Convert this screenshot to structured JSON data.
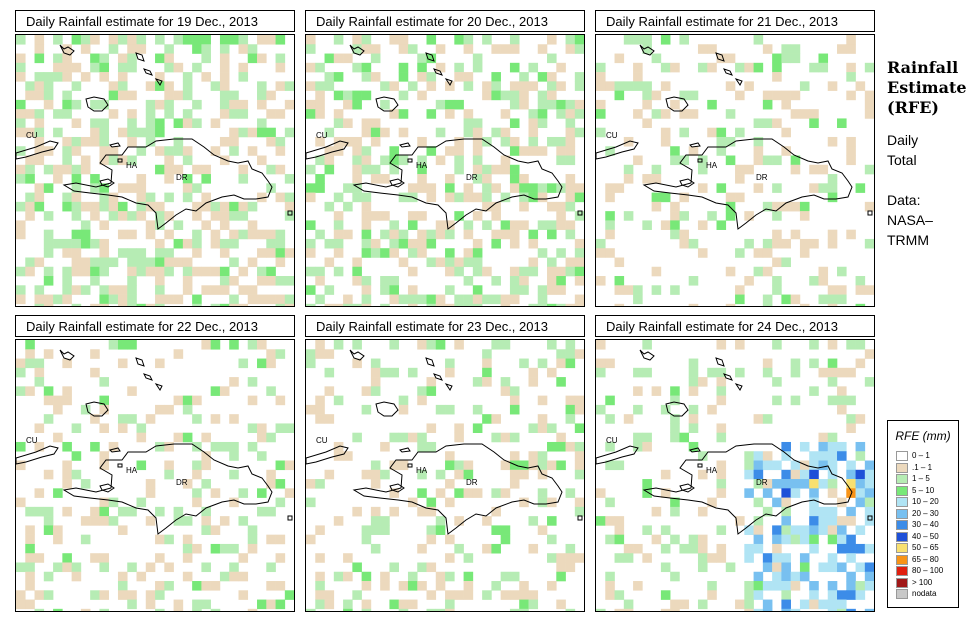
{
  "panels": [
    {
      "title": "Daily Rainfall estimate for  19 Dec., 2013",
      "seed": 19,
      "wet": 0.55,
      "heavy": 0
    },
    {
      "title": "Daily Rainfall estimate for  20 Dec., 2013",
      "seed": 20,
      "wet": 0.5,
      "heavy": 0
    },
    {
      "title": "Daily Rainfall estimate for  21 Dec., 2013",
      "seed": 21,
      "wet": 0.3,
      "heavy": 0
    },
    {
      "title": "Daily Rainfall estimate for  22 Dec., 2013",
      "seed": 22,
      "wet": 0.3,
      "heavy": 0
    },
    {
      "title": "Daily Rainfall estimate for  23 Dec., 2013",
      "seed": 23,
      "wet": 0.32,
      "heavy": 0
    },
    {
      "title": "Daily Rainfall estimate for  24 Dec., 2013",
      "seed": 24,
      "wet": 0.3,
      "heavy": 1
    }
  ],
  "map_labels": {
    "cuba": "CU",
    "haiti": "HA",
    "dominican_republic": "DR"
  },
  "side": {
    "title_line1": "Rainfall",
    "title_line2": "Estimate",
    "title_line3": "(RFE)",
    "daily": "Daily",
    "total": "Total",
    "data": "Data:",
    "source1": "NASA–",
    "source2": "TRMM"
  },
  "legend": {
    "title": "RFE (mm)",
    "items": [
      {
        "label": "0 – 1",
        "color": "#ffffff"
      },
      {
        "label": ".1 – 1",
        "color": "#ecd9bd"
      },
      {
        "label": "1 – 5",
        "color": "#b6ecb4"
      },
      {
        "label": "5 – 10",
        "color": "#78e878"
      },
      {
        "label": "10 – 20",
        "color": "#b0e4f4"
      },
      {
        "label": "20 – 30",
        "color": "#78c0f0"
      },
      {
        "label": "30 – 40",
        "color": "#3c8ce8"
      },
      {
        "label": "40 – 50",
        "color": "#1e50d8"
      },
      {
        "label": "50 – 65",
        "color": "#f8e070"
      },
      {
        "label": "65 – 80",
        "color": "#f89418"
      },
      {
        "label": "80 – 100",
        "color": "#e02010"
      },
      {
        "label": "> 100",
        "color": "#a01818"
      },
      {
        "label": "nodata",
        "color": "#c8c8c8"
      }
    ]
  }
}
